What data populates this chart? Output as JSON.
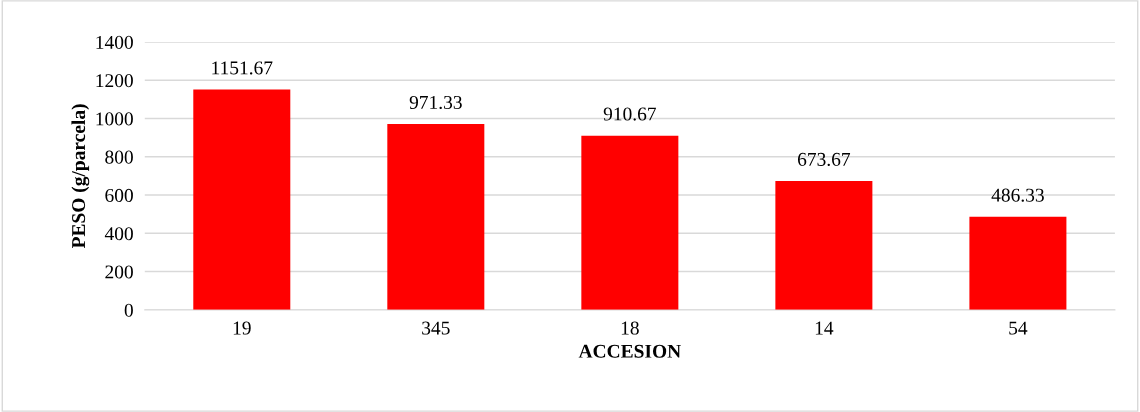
{
  "chart_data": {
    "type": "bar",
    "xlabel": "ACCESION",
    "ylabel": "PESO (g/parcela)",
    "categories": [
      "19",
      "345",
      "18",
      "14",
      "54"
    ],
    "values": [
      1151.67,
      971.33,
      910.67,
      673.67,
      486.33
    ],
    "color": "#ff0000",
    "ylim": [
      0,
      1400
    ],
    "yticks": [
      0,
      200,
      400,
      600,
      800,
      1000,
      1200,
      1400
    ],
    "grid": "y",
    "data_labels": true
  }
}
